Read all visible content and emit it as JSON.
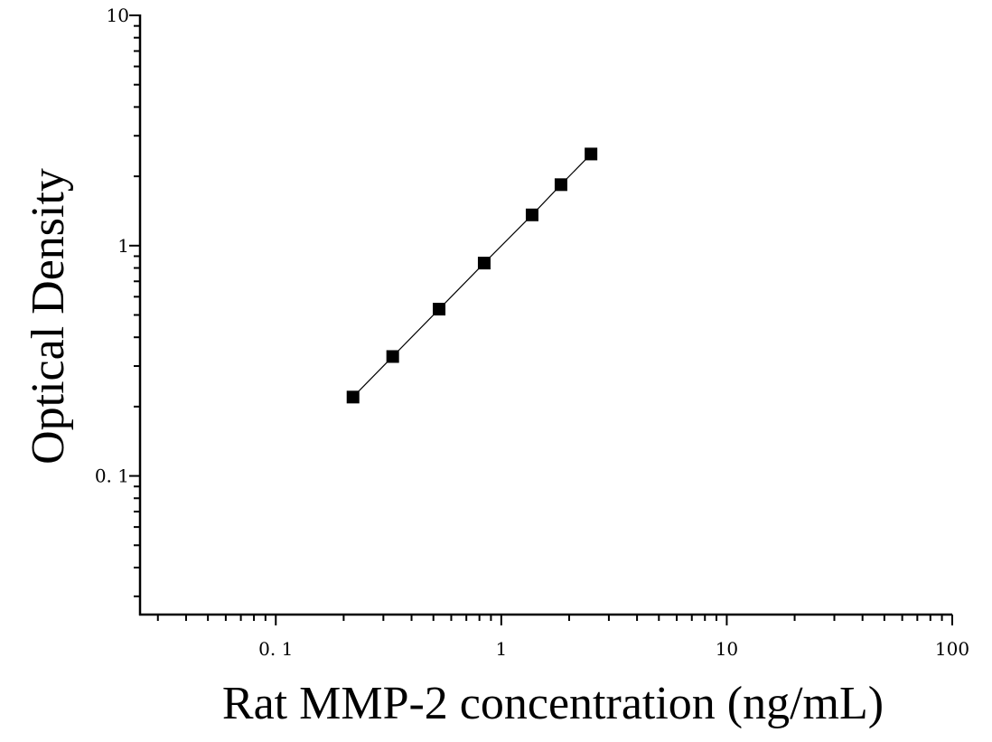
{
  "chart_data": {
    "type": "scatter",
    "title": "",
    "xlabel": "Rat MMP-2 concentration (ng/mL)",
    "ylabel": "Optical Density",
    "xscale": "log",
    "yscale": "log",
    "xlim": [
      0.025,
      100
    ],
    "ylim": [
      0.025,
      10
    ],
    "grid": false,
    "legend": "none",
    "x_ticks": [
      {
        "value": 0.1,
        "label": "0. 1"
      },
      {
        "value": 1,
        "label": "1"
      },
      {
        "value": 10,
        "label": "10"
      },
      {
        "value": 100,
        "label": "100"
      }
    ],
    "y_ticks": [
      {
        "value": 0.1,
        "label": "0. 1"
      },
      {
        "value": 1,
        "label": "1"
      },
      {
        "value": 10,
        "label": "10"
      }
    ],
    "series": [
      {
        "marker": "square",
        "line": true,
        "color": "#000000",
        "x": [
          0.22,
          0.33,
          0.53,
          0.84,
          1.37,
          1.84,
          2.5
        ],
        "y": [
          0.22,
          0.33,
          0.53,
          0.84,
          1.36,
          1.84,
          2.5
        ]
      }
    ]
  }
}
